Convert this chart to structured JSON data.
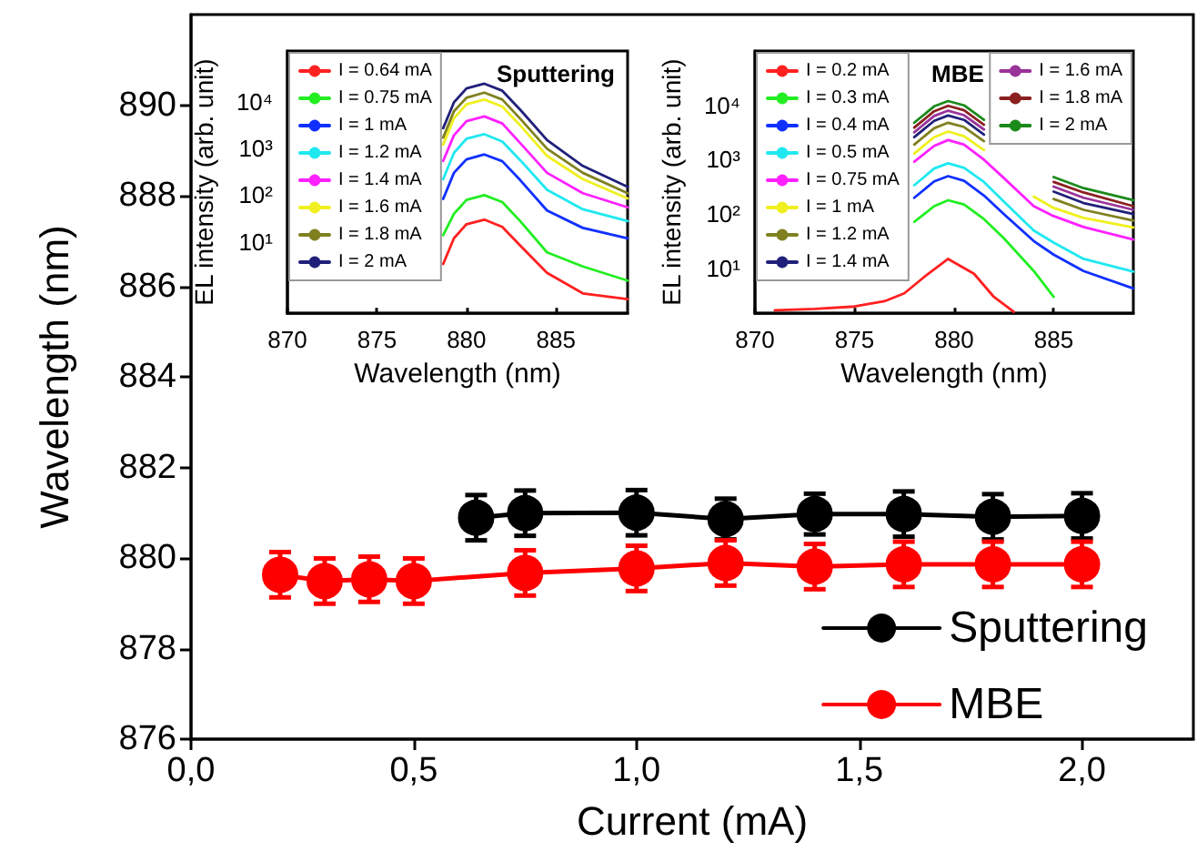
{
  "chart_data": [
    {
      "type": "line",
      "xlabel": "Current (mA)",
      "ylabel": "Wavelength (nm)",
      "xlim": [
        0,
        2.25
      ],
      "ylim": [
        876,
        892
      ],
      "xticks": [
        {
          "value": 0,
          "label": "0,0"
        },
        {
          "value": 0.5,
          "label": "0,5"
        },
        {
          "value": 1,
          "label": "1,0"
        },
        {
          "value": 1.5,
          "label": "1,5"
        },
        {
          "value": 2,
          "label": "2,0"
        }
      ],
      "yticks": [
        876,
        878,
        880,
        882,
        884,
        886,
        888,
        890
      ],
      "legend": "bottom right",
      "marker": "circle",
      "series": [
        {
          "name": "Sputtering",
          "color": "#000000",
          "x": [
            0.64,
            0.75,
            1,
            1.2,
            1.4,
            1.6,
            1.8,
            2
          ],
          "values": [
            880.89,
            880.99,
            881.0,
            880.86,
            880.97,
            880.97,
            880.91,
            880.93
          ],
          "errors": [
            0.5,
            0.5,
            0.5,
            0.45,
            0.45,
            0.5,
            0.5,
            0.5
          ]
        },
        {
          "name": "MBE",
          "color": "#ff0000",
          "x": [
            0.2,
            0.3,
            0.4,
            0.5,
            0.75,
            1,
            1.2,
            1.4,
            1.6,
            1.8,
            2
          ],
          "values": [
            879.63,
            879.49,
            879.53,
            879.49,
            879.67,
            879.77,
            879.89,
            879.81,
            879.86,
            879.86,
            879.86
          ],
          "errors": [
            0.5,
            0.5,
            0.5,
            0.5,
            0.5,
            0.5,
            0.5,
            0.5,
            0.5,
            0.5,
            0.5
          ]
        }
      ]
    },
    {
      "type": "line",
      "title": "Sputtering",
      "xlabel": "Wavelength (nm)",
      "ylabel": "EL intensity (arb. unit)",
      "log": "y",
      "xlim": [
        870,
        889
      ],
      "ylim": [
        0.3,
        120000
      ],
      "xticks": [
        870,
        875,
        880,
        885
      ],
      "yticks": [
        {
          "value": 10,
          "label": "10¹"
        },
        {
          "value": 100,
          "label": "10²"
        },
        {
          "value": 1000,
          "label": "10³"
        },
        {
          "value": 10000,
          "label": "10⁴"
        }
      ],
      "legend": "top left",
      "x": [
        878.7,
        879.3,
        880,
        881,
        882,
        883,
        884.5,
        886.5,
        889
      ],
      "series": [
        {
          "name": "I = 0.64 mA",
          "color": "#ff2020",
          "values": [
            3.4,
            12,
            24,
            30,
            21,
            8.4,
            2.2,
            0.8,
            0.6
          ]
        },
        {
          "name": "I = 0.75 mA",
          "color": "#22ee22",
          "values": [
            14,
            40,
            79,
            100,
            71,
            28,
            6,
            3,
            1.5
          ]
        },
        {
          "name": "I = 1 mA",
          "color": "#1030ff",
          "values": [
            83,
            300,
            580,
            740,
            530,
            210,
            47,
            20,
            12
          ]
        },
        {
          "name": "I = 1.2 mA",
          "color": "#20e8f0",
          "values": [
            220,
            800,
            1600,
            2000,
            1400,
            560,
            130,
            50,
            28
          ]
        },
        {
          "name": "I = 1.4 mA",
          "color": "#ff20ff",
          "values": [
            540,
            1900,
            3800,
            4800,
            3400,
            1300,
            300,
            110,
            55
          ]
        },
        {
          "name": "I = 1.6 mA",
          "color": "#f0f020",
          "values": [
            1200,
            4400,
            8700,
            11000,
            7800,
            3100,
            690,
            220,
            85
          ]
        },
        {
          "name": "I = 1.8 mA",
          "color": "#808020",
          "values": [
            1700,
            6200,
            12000,
            15500,
            11000,
            4300,
            980,
            300,
            110
          ]
        },
        {
          "name": "I = 2 mA",
          "color": "#20207a",
          "values": [
            2700,
            9600,
            19000,
            24000,
            17000,
            6700,
            1500,
            420,
            150
          ]
        }
      ]
    },
    {
      "type": "line",
      "title": "MBE",
      "xlabel": "Wavelength (nm)",
      "ylabel": "EL intensity (arb. unit)",
      "log": "y",
      "xlim": [
        870,
        889
      ],
      "ylim": [
        1.5,
        100000
      ],
      "xticks": [
        870,
        875,
        880,
        885
      ],
      "yticks": [
        {
          "value": 10,
          "label": "10¹"
        },
        {
          "value": 100,
          "label": "10²"
        },
        {
          "value": 1000,
          "label": "10³"
        },
        {
          "value": 10000,
          "label": "10⁴"
        }
      ],
      "legend": "top left",
      "x": [
        878,
        879,
        879.7,
        880.5,
        881.5,
        882.5,
        884,
        885,
        886.5,
        889
      ],
      "series": [
        {
          "name": "I = 0.2 mA",
          "color": "#ff2020",
          "x": [
            871,
            873,
            875,
            876.5,
            877.5,
            878.5,
            879.7,
            881,
            882,
            883
          ],
          "values": [
            1.7,
            1.8,
            2,
            2.5,
            3.5,
            7,
            15,
            8,
            3,
            1.6
          ]
        },
        {
          "name": "I = 0.3 mA",
          "color": "#22ee22",
          "values": [
            72,
            140,
            180,
            150,
            81,
            36,
            9,
            3,
            null,
            null
          ]
        },
        {
          "name": "I = 0.4 mA",
          "color": "#1030ff",
          "values": [
            200,
            400,
            500,
            410,
            220,
            100,
            32,
            18,
            9,
            4.3
          ]
        },
        {
          "name": "I = 0.5 mA",
          "color": "#20e8f0",
          "values": [
            340,
            690,
            860,
            710,
            390,
            170,
            50,
            30,
            15,
            8.8
          ]
        },
        {
          "name": "I = 0.75 mA",
          "color": "#ff20ff",
          "values": [
            920,
            1800,
            2300,
            1900,
            1000,
            460,
            140,
            92,
            58,
            34
          ]
        },
        {
          "name": "I = 1 mA",
          "color": "#f0f020",
          "values": [
            1300,
            2600,
            3300,
            2700,
            1500,
            null,
            210,
            130,
            85,
            57
          ]
        },
        {
          "name": "I = 1.2 mA",
          "color": "#808020",
          "values": [
            1900,
            3800,
            4800,
            4000,
            2200,
            null,
            null,
            190,
            120,
            76
          ]
        },
        {
          "name": "I = 1.4 mA",
          "color": "#20207a",
          "values": [
            2600,
            5200,
            6500,
            5400,
            2900,
            null,
            null,
            260,
            160,
            100
          ]
        },
        {
          "name": "I = 1.6 mA",
          "color": "#993399",
          "values": [
            3200,
            6400,
            8000,
            6600,
            3600,
            null,
            null,
            320,
            200,
            120
          ]
        },
        {
          "name": "I = 1.8 mA",
          "color": "#8b2020",
          "values": [
            3900,
            7800,
            9800,
            8100,
            4400,
            null,
            null,
            390,
            250,
            140
          ]
        },
        {
          "name": "I = 2 mA",
          "color": "#1a8a1a",
          "values": [
            4800,
            9600,
            12000,
            10000,
            5400,
            null,
            null,
            480,
            300,
            180
          ]
        }
      ]
    }
  ]
}
